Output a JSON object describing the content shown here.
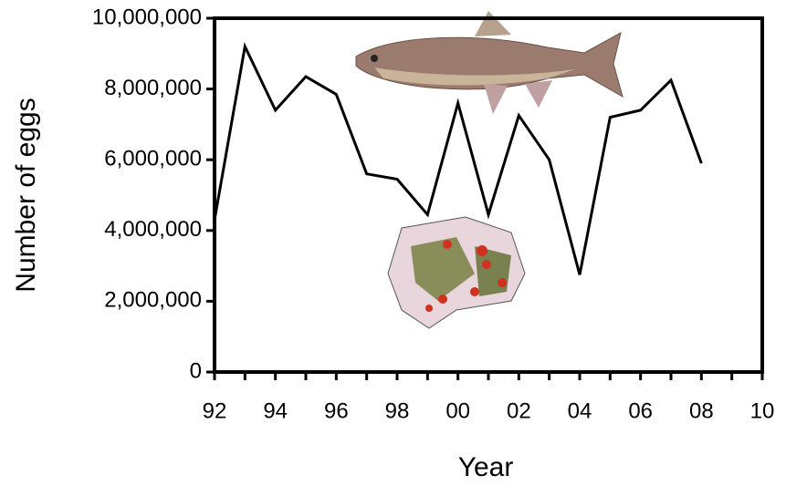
{
  "chart_data": {
    "type": "line",
    "x_label": "Year",
    "y_label": "Number of eggs",
    "categories": [
      "92",
      null,
      "94",
      null,
      "96",
      null,
      "98",
      null,
      "00",
      null,
      "02",
      null,
      "04",
      null,
      "06",
      null,
      "08",
      null,
      "10"
    ],
    "values": [
      4300000,
      9200000,
      7400000,
      8350000,
      7850000,
      5600000,
      5450000,
      4450000,
      7600000,
      4450000,
      7250000,
      6000000,
      2750000,
      7200000,
      7400000,
      8250000,
      5900000,
      null,
      null
    ],
    "color": "#000000",
    "ylim": [
      0,
      10000000
    ],
    "yticks": [
      0,
      {
        "value": 2000000,
        "label": "2,000,000"
      },
      {
        "value": 4000000,
        "label": "4,000,000"
      },
      {
        "value": 6000000,
        "label": "6,000,000"
      },
      {
        "value": 8000000,
        "label": "8,000,000"
      },
      {
        "value": 10000000,
        "label": "10,000,000"
      }
    ]
  }
}
